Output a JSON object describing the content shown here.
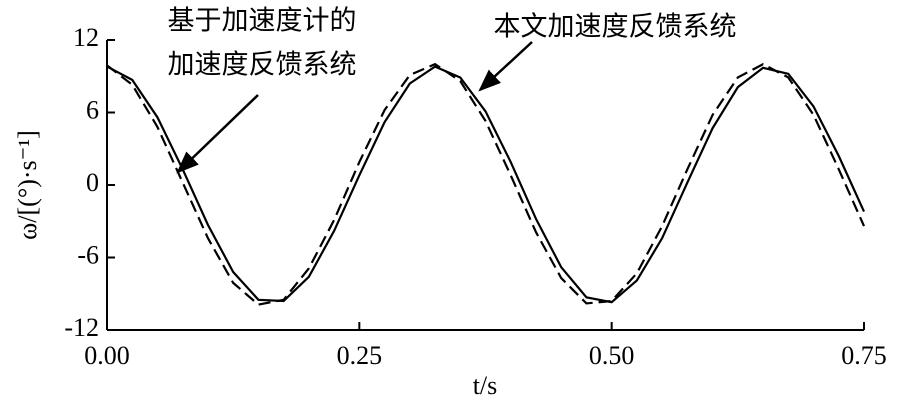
{
  "chart_data": {
    "type": "line",
    "xlabel": "t/s",
    "ylabel": "ω/[(°)·s⁻¹]",
    "x": [
      0,
      0.025,
      0.05,
      0.075,
      0.1,
      0.125,
      0.15,
      0.175,
      0.2,
      0.225,
      0.25,
      0.275,
      0.3,
      0.325,
      0.35,
      0.375,
      0.4,
      0.425,
      0.45,
      0.475,
      0.5,
      0.525,
      0.55,
      0.575,
      0.6,
      0.625,
      0.65,
      0.675,
      0.7,
      0.725,
      0.75
    ],
    "series": [
      {
        "color": "#000000",
        "style": "solid",
        "values": [
          9.8,
          8.7,
          5.6,
          1.3,
          -3.3,
          -7.2,
          -9.5,
          -9.6,
          -7.6,
          -3.8,
          0.8,
          5.2,
          8.4,
          9.8,
          8.9,
          6.1,
          1.9,
          -2.8,
          -6.8,
          -9.3,
          -9.7,
          -7.9,
          -4.4,
          0.2,
          4.7,
          8.1,
          9.7,
          9.2,
          6.5,
          2.4,
          -2.2
        ]
      },
      {
        "color": "#000000",
        "style": "dashed",
        "values": [
          9.9,
          8.3,
          4.8,
          0.2,
          -4.4,
          -8.1,
          -9.9,
          -9.5,
          -6.9,
          -2.9,
          1.9,
          6.2,
          9.1,
          10.0,
          8.6,
          5.3,
          0.8,
          -3.9,
          -7.7,
          -9.8,
          -9.6,
          -7.3,
          -3.4,
          1.3,
          5.8,
          8.9,
          10.0,
          8.9,
          5.8,
          1.3,
          -3.4
        ]
      }
    ],
    "xlim": [
      0,
      0.75
    ],
    "xticks": [
      {
        "value": 0,
        "label": "0.00"
      },
      0.25,
      {
        "value": 0.5,
        "label": "0.50"
      },
      0.75
    ],
    "ylim": [
      -12,
      12
    ],
    "yticks": [
      -12,
      -6,
      0,
      6,
      12
    ],
    "annotations": [
      {
        "lines": [
          "基于加速度计的",
          "加速度反馈系统"
        ]
      },
      {
        "lines": [
          "本文加速度反馈系统"
        ]
      }
    ]
  }
}
